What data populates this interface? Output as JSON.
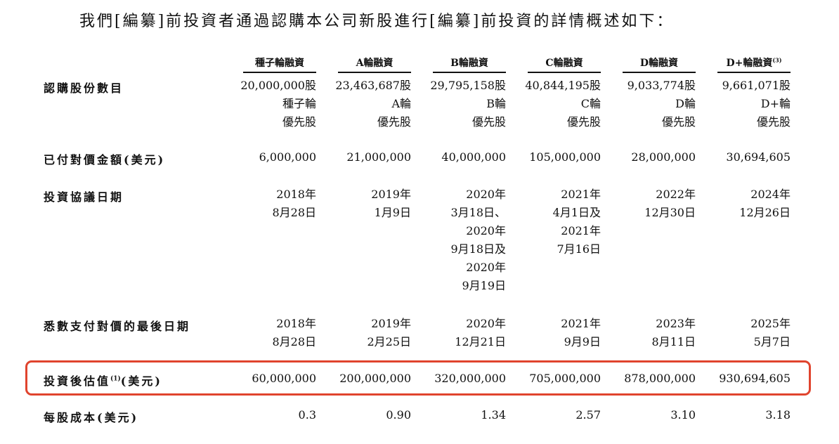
{
  "intro_text": "我們[編纂]前投資者通過認購本公司新股進行[編纂]前投資的詳情概述如下：",
  "highlight_color": "#e0442e",
  "columns": [
    {
      "label": "種子輪融資",
      "note": ""
    },
    {
      "label": "A輪融資",
      "note": ""
    },
    {
      "label": "B輪融資",
      "note": ""
    },
    {
      "label": "C輪融資",
      "note": ""
    },
    {
      "label": "D輪融資",
      "note": ""
    },
    {
      "label": "D+輪融資",
      "note": "(3)"
    }
  ],
  "rows": [
    {
      "label": "認購股份數目",
      "label_note": "",
      "label_suffix": "",
      "cells": [
        [
          "20,000,000股",
          "種子輪",
          "優先股"
        ],
        [
          "23,463,687股",
          "A輪",
          "優先股"
        ],
        [
          "29,795,158股",
          "B輪",
          "優先股"
        ],
        [
          "40,844,195股",
          "C輪",
          "優先股"
        ],
        [
          "9,033,774股",
          "D輪",
          "優先股"
        ],
        [
          "9,661,071股",
          "D+輪",
          "優先股"
        ]
      ]
    },
    {
      "label": "已付對價金額(美元)",
      "label_note": "",
      "label_suffix": "",
      "cells": [
        [
          "6,000,000"
        ],
        [
          "21,000,000"
        ],
        [
          "40,000,000"
        ],
        [
          "105,000,000"
        ],
        [
          "28,000,000"
        ],
        [
          "30,694,605"
        ]
      ]
    },
    {
      "label": "投資協議日期",
      "label_note": "",
      "label_suffix": "",
      "cells": [
        [
          "2018年",
          "8月28日"
        ],
        [
          "2019年",
          "1月9日"
        ],
        [
          "2020年",
          "3月18日、",
          "2020年",
          "9月18日及",
          "2020年",
          "9月19日"
        ],
        [
          "2021年",
          "4月1日及",
          "2021年",
          "7月16日"
        ],
        [
          "2022年",
          "12月30日"
        ],
        [
          "2024年",
          "12月26日"
        ]
      ]
    },
    {
      "label": "悉數支付對價的最後日期",
      "label_note": "",
      "label_suffix": "",
      "cells": [
        [
          "2018年",
          "8月28日"
        ],
        [
          "2019年",
          "2月25日"
        ],
        [
          "2020年",
          "12月21日"
        ],
        [
          "2021年",
          "9月9日"
        ],
        [
          "2023年",
          "8月11日"
        ],
        [
          "2025年",
          "5月7日"
        ]
      ]
    },
    {
      "label": "投資後估值",
      "label_note": "(1)",
      "label_suffix": "(美元)",
      "cells": [
        [
          "60,000,000"
        ],
        [
          "200,000,000"
        ],
        [
          "320,000,000"
        ],
        [
          "705,000,000"
        ],
        [
          "878,000,000"
        ],
        [
          "930,694,605"
        ]
      ]
    },
    {
      "label": "每股成本(美元)",
      "label_note": "",
      "label_suffix": "",
      "cells": [
        [
          "0.3"
        ],
        [
          "0.90"
        ],
        [
          "1.34"
        ],
        [
          "2.57"
        ],
        [
          "3.10"
        ],
        [
          "3.18"
        ]
      ]
    }
  ]
}
